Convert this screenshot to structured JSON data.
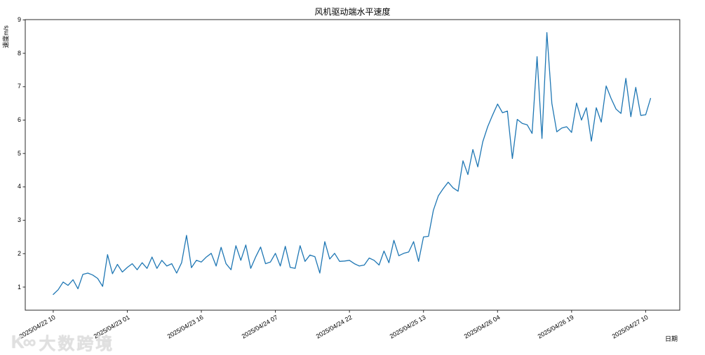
{
  "chart_data": {
    "type": "line",
    "title": "风机驱动端水平速度",
    "xlabel": "日期",
    "ylabel": "速度m/s",
    "line_color": "#1f77b4",
    "grid": false,
    "legend": null,
    "ylim": [
      0.31,
      9.01
    ],
    "y_ticks": [
      1,
      2,
      3,
      4,
      5,
      6,
      7,
      8,
      9
    ],
    "x_start": "2025/04/22 10",
    "x_interval_hours": 1,
    "x_tick_every_points": 15,
    "x_tick_labels": [
      "2025/04/22 10",
      "2025/04/23 01",
      "2025/04/23 16",
      "2025/04/24 07",
      "2025/04/24 22",
      "2025/04/25 13",
      "2025/04/26 04",
      "2025/04/26 19",
      "2025/04/27 10"
    ],
    "values": [
      0.78,
      0.92,
      1.15,
      1.05,
      1.22,
      0.95,
      1.38,
      1.42,
      1.36,
      1.26,
      1.02,
      1.97,
      1.4,
      1.68,
      1.45,
      1.59,
      1.7,
      1.52,
      1.73,
      1.56,
      1.9,
      1.56,
      1.8,
      1.63,
      1.7,
      1.42,
      1.73,
      2.55,
      1.58,
      1.8,
      1.75,
      1.9,
      2.01,
      1.63,
      2.19,
      1.7,
      1.52,
      2.24,
      1.8,
      2.26,
      1.56,
      1.9,
      2.2,
      1.7,
      1.75,
      2.01,
      1.63,
      2.22,
      1.59,
      1.56,
      2.24,
      1.77,
      1.96,
      1.91,
      1.42,
      2.36,
      1.84,
      2.01,
      1.77,
      1.78,
      1.8,
      1.7,
      1.63,
      1.66,
      1.87,
      1.8,
      1.66,
      2.08,
      1.73,
      2.4,
      1.94,
      2.01,
      2.05,
      2.36,
      1.77,
      2.5,
      2.52,
      3.3,
      3.73,
      3.95,
      4.14,
      3.97,
      3.87,
      4.78,
      4.37,
      5.12,
      4.6,
      5.35,
      5.8,
      6.15,
      6.48,
      6.22,
      6.27,
      4.85,
      6.02,
      5.9,
      5.86,
      5.6,
      7.9,
      5.45,
      8.62,
      6.5,
      5.65,
      5.76,
      5.8,
      5.63,
      6.51,
      6.0,
      6.37,
      5.37,
      6.37,
      5.94,
      7.02,
      6.65,
      6.33,
      6.2,
      7.25,
      6.1,
      6.98,
      6.14,
      6.16,
      6.65
    ]
  },
  "watermark": {
    "logo": "K∞",
    "text": "大数跨境",
    "color": "#e0e0e0"
  }
}
